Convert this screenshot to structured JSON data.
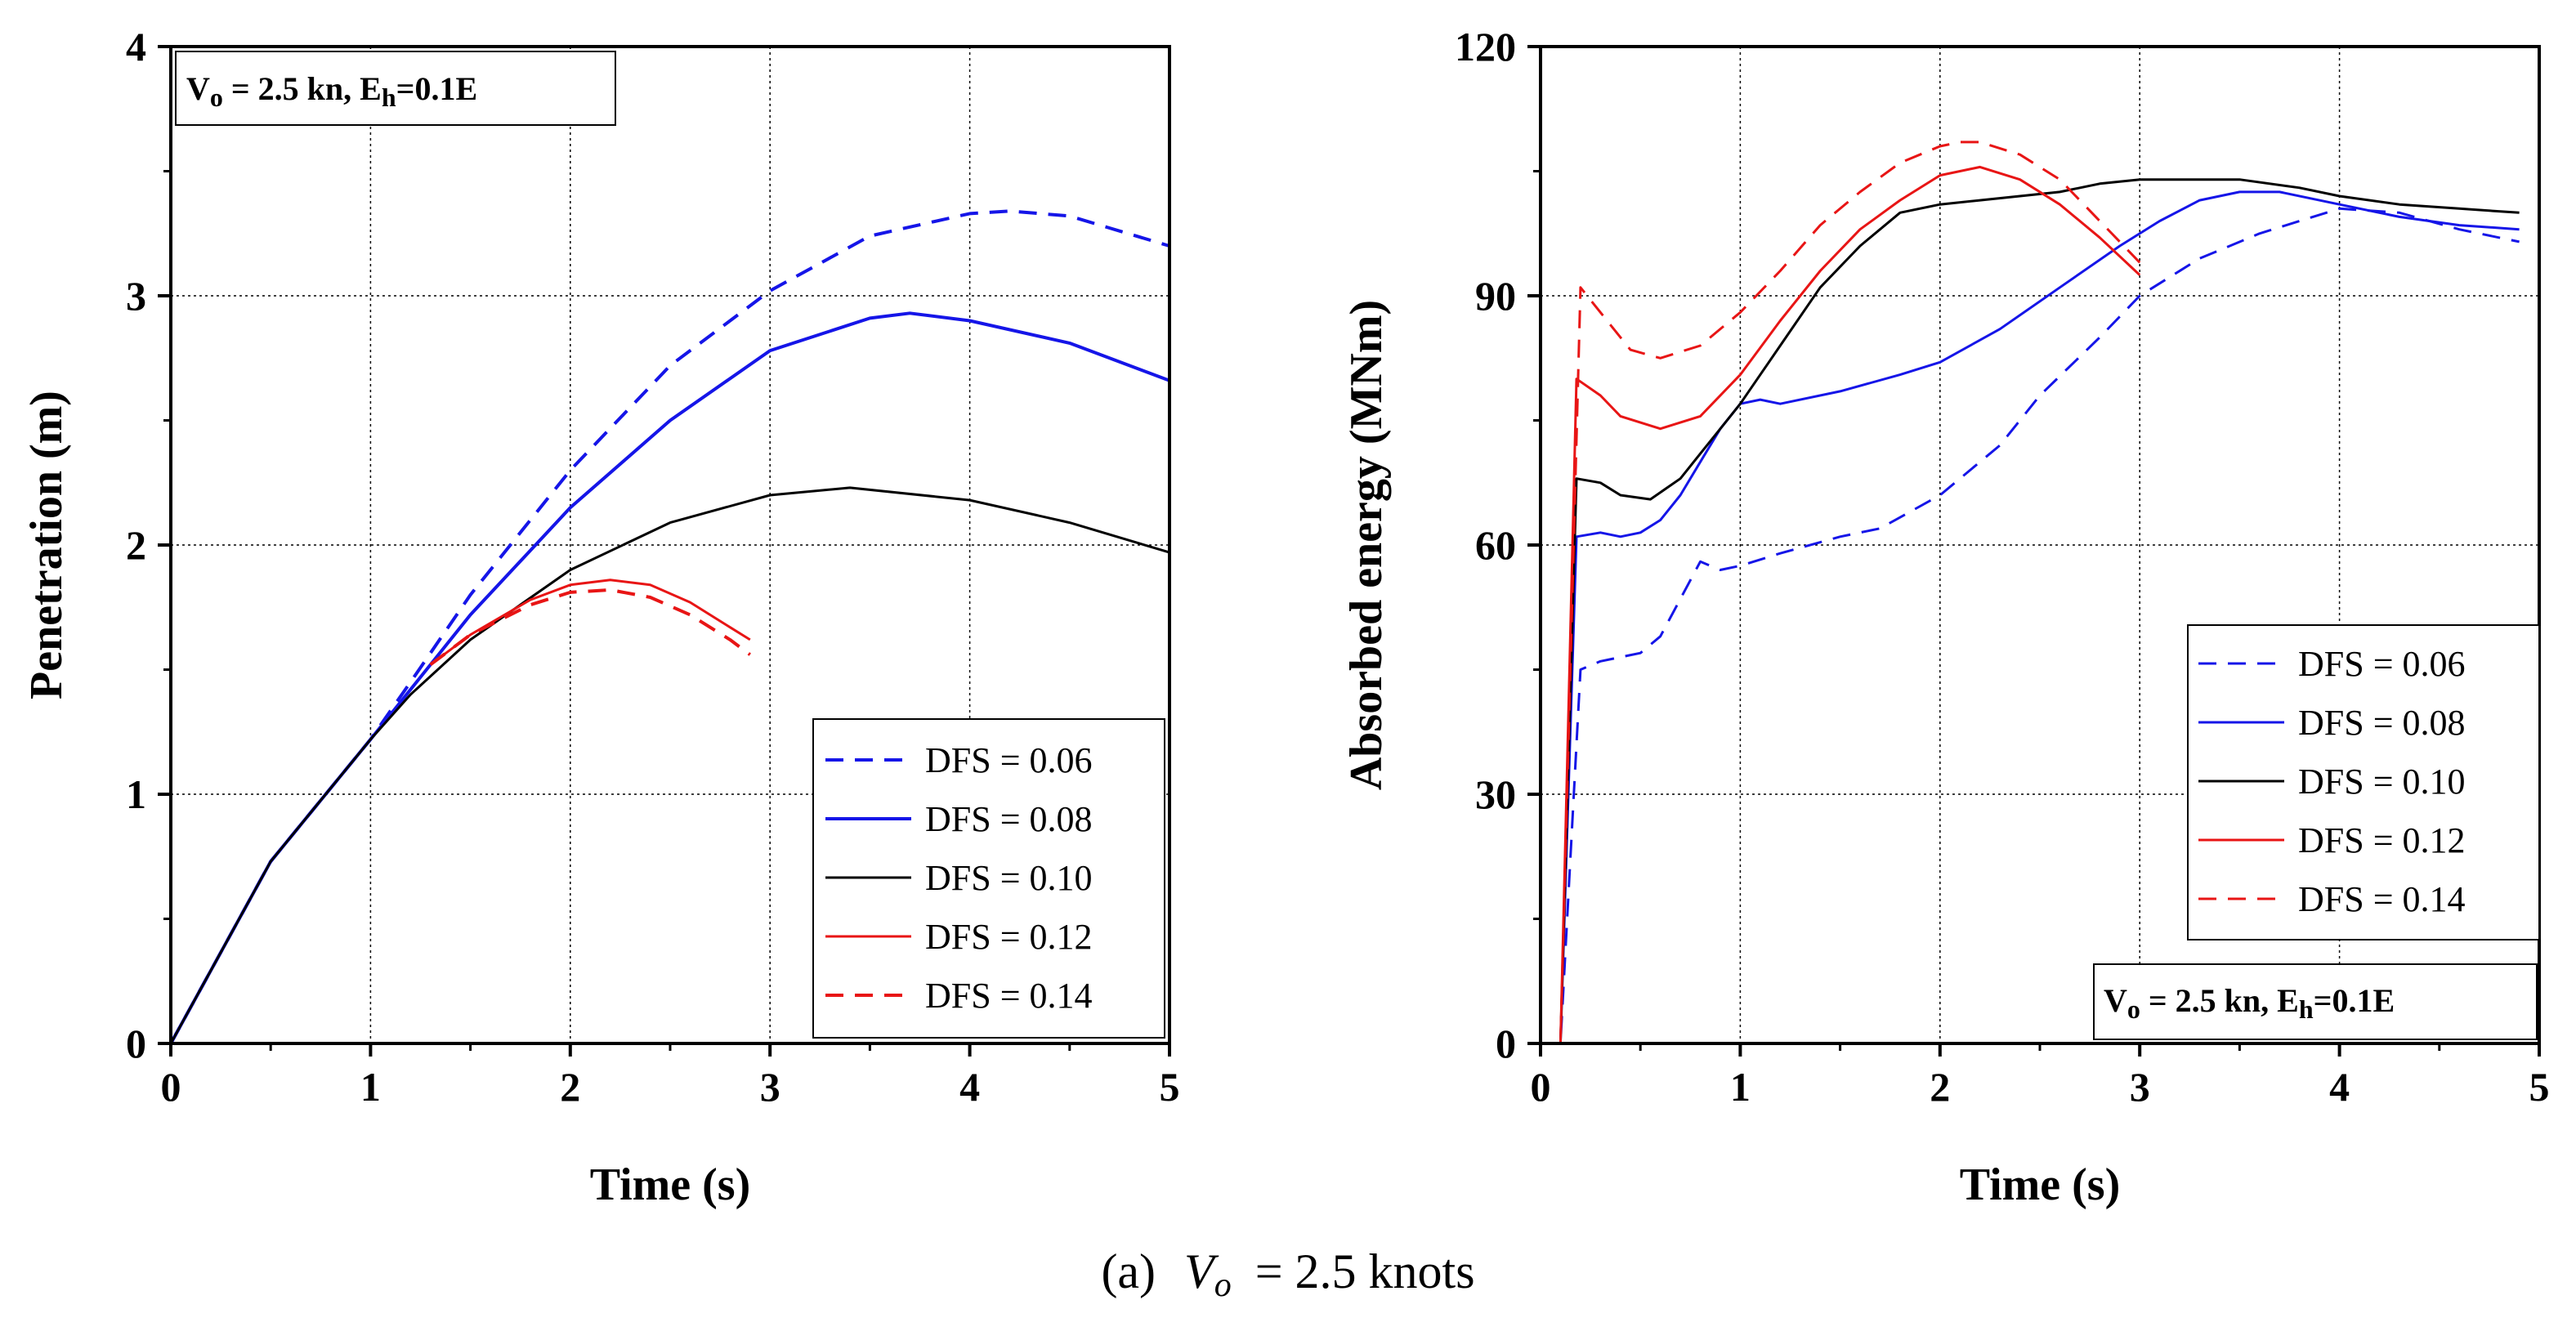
{
  "caption": {
    "label": "(a)",
    "symbol": "V",
    "subscript": "o",
    "rest": "= 2.5 knots"
  },
  "colors": {
    "blue": "#1515e8",
    "black": "#000000",
    "red": "#e81515",
    "grid": "#000000"
  },
  "chart_data": [
    {
      "type": "line",
      "xlabel": "Time (s)",
      "ylabel": "Penetration (m)",
      "xlim": [
        0,
        5
      ],
      "ylim": [
        0,
        4
      ],
      "xticks": [
        "0",
        "1",
        "2",
        "3",
        "4",
        "5"
      ],
      "yticks": [
        "0",
        "1",
        "2",
        "3",
        "4"
      ],
      "grid": true,
      "legend_position": "bottom-right",
      "annotation": {
        "main": "V",
        "sub1": "o",
        "mid": " = 2.5 kn, E",
        "sub2": "h",
        "tail": "=0.1E",
        "position": "top-left"
      },
      "series": [
        {
          "name": "DFS = 0.06",
          "color": "#1515e8",
          "dash": true,
          "width": 4,
          "x": [
            0,
            0.5,
            1.0,
            1.2,
            1.5,
            2.0,
            2.5,
            3.0,
            3.5,
            4.0,
            4.2,
            4.5,
            5.0
          ],
          "y": [
            0,
            0.73,
            1.22,
            1.45,
            1.8,
            2.3,
            2.72,
            3.02,
            3.24,
            3.33,
            3.34,
            3.32,
            3.2
          ]
        },
        {
          "name": "DFS = 0.08",
          "color": "#1515e8",
          "dash": false,
          "width": 4,
          "x": [
            0,
            0.5,
            1.0,
            1.2,
            1.5,
            2.0,
            2.5,
            3.0,
            3.5,
            3.7,
            4.0,
            4.5,
            5.0
          ],
          "y": [
            0,
            0.73,
            1.22,
            1.42,
            1.72,
            2.15,
            2.5,
            2.78,
            2.91,
            2.93,
            2.9,
            2.81,
            2.66
          ]
        },
        {
          "name": "DFS = 0.10",
          "color": "#000000",
          "dash": false,
          "width": 3,
          "x": [
            0,
            0.5,
            1.0,
            1.2,
            1.5,
            2.0,
            2.5,
            3.0,
            3.4,
            4.0,
            4.5,
            5.0
          ],
          "y": [
            0,
            0.73,
            1.22,
            1.4,
            1.62,
            1.9,
            2.09,
            2.2,
            2.23,
            2.18,
            2.09,
            1.97
          ]
        },
        {
          "name": "DFS = 0.12",
          "color": "#e81515",
          "dash": false,
          "width": 3,
          "x": [
            1.3,
            1.5,
            1.8,
            2.0,
            2.2,
            2.4,
            2.6,
            2.8,
            2.9
          ],
          "y": [
            1.52,
            1.64,
            1.78,
            1.84,
            1.86,
            1.84,
            1.77,
            1.67,
            1.62
          ]
        },
        {
          "name": "DFS = 0.14",
          "color": "#e81515",
          "dash": true,
          "width": 4,
          "x": [
            1.3,
            1.5,
            1.8,
            2.0,
            2.2,
            2.4,
            2.6,
            2.8,
            2.9
          ],
          "y": [
            1.52,
            1.64,
            1.76,
            1.81,
            1.82,
            1.79,
            1.72,
            1.62,
            1.56
          ]
        }
      ]
    },
    {
      "type": "line",
      "xlabel": "Time (s)",
      "ylabel": "Absorbed energy (MNm)",
      "xlim": [
        0,
        5
      ],
      "ylim": [
        0,
        120
      ],
      "xticks": [
        "0",
        "1",
        "2",
        "3",
        "4",
        "5"
      ],
      "yticks": [
        "0",
        "30",
        "60",
        "90",
        "120"
      ],
      "grid": true,
      "legend_position": "right-middle",
      "annotation": {
        "main": "V",
        "sub1": "o",
        "mid": " = 2.5 kn, E",
        "sub2": "h",
        "tail": "=0.1E",
        "position": "bottom-right"
      },
      "series": [
        {
          "name": "DFS = 0.06",
          "color": "#1515e8",
          "dash": true,
          "width": 3,
          "x": [
            0,
            0.1,
            0.2,
            0.3,
            0.5,
            0.6,
            0.8,
            0.9,
            1.0,
            1.2,
            1.5,
            1.7,
            2.0,
            2.3,
            2.5,
            2.8,
            3.0,
            3.3,
            3.6,
            3.8,
            4.0,
            4.3,
            4.6,
            4.9
          ],
          "y": [
            0,
            0,
            45,
            46,
            47,
            49,
            58,
            57,
            57.5,
            59,
            61,
            62,
            66,
            72,
            78,
            85,
            90,
            94.5,
            97.5,
            99,
            100.5,
            100,
            98,
            96.5
          ]
        },
        {
          "name": "DFS = 0.08",
          "color": "#1515e8",
          "dash": false,
          "width": 3,
          "x": [
            0,
            0.1,
            0.18,
            0.3,
            0.4,
            0.5,
            0.6,
            0.7,
            0.8,
            0.9,
            1.0,
            1.1,
            1.2,
            1.5,
            1.8,
            2.0,
            2.3,
            2.6,
            2.9,
            3.1,
            3.3,
            3.5,
            3.7,
            4.0,
            4.3,
            4.6,
            4.9
          ],
          "y": [
            0,
            0,
            61,
            61.5,
            61,
            61.5,
            63,
            66,
            70,
            74,
            77,
            77.5,
            77,
            78.5,
            80.5,
            82,
            86,
            91,
            96,
            99,
            101.5,
            102.5,
            102.5,
            101,
            99.5,
            98.5,
            98
          ]
        },
        {
          "name": "DFS = 0.10",
          "color": "#000000",
          "dash": false,
          "width": 3,
          "x": [
            0,
            0.1,
            0.18,
            0.3,
            0.4,
            0.55,
            0.7,
            0.8,
            0.9,
            1.0,
            1.2,
            1.4,
            1.6,
            1.8,
            2.0,
            2.2,
            2.4,
            2.6,
            2.8,
            3.0,
            3.2,
            3.5,
            3.8,
            4.0,
            4.3,
            4.6,
            4.9
          ],
          "y": [
            0,
            0,
            68,
            67.5,
            66,
            65.5,
            68,
            71,
            74,
            77,
            84,
            91,
            96,
            100,
            101,
            101.5,
            102,
            102.5,
            103.5,
            104,
            104,
            104,
            103,
            102,
            101,
            100.5,
            100
          ]
        },
        {
          "name": "DFS = 0.12",
          "color": "#e81515",
          "dash": false,
          "width": 3,
          "x": [
            0,
            0.1,
            0.18,
            0.3,
            0.4,
            0.6,
            0.8,
            1.0,
            1.2,
            1.4,
            1.6,
            1.8,
            2.0,
            2.2,
            2.4,
            2.6,
            2.8,
            3.0
          ],
          "y": [
            0,
            0,
            80,
            78,
            75.5,
            74,
            75.5,
            80.5,
            87,
            93,
            98,
            101.5,
            104.5,
            105.5,
            104,
            101,
            97,
            92.5
          ]
        },
        {
          "name": "DFS = 0.14",
          "color": "#e81515",
          "dash": true,
          "width": 3,
          "x": [
            0,
            0.1,
            0.2,
            0.3,
            0.45,
            0.6,
            0.8,
            1.0,
            1.2,
            1.4,
            1.6,
            1.8,
            2.0,
            2.1,
            2.2,
            2.4,
            2.6,
            2.8,
            3.0
          ],
          "y": [
            0,
            0,
            91,
            88,
            83.5,
            82.5,
            84,
            88,
            93,
            98.5,
            102.5,
            106,
            108,
            108.5,
            108.5,
            107,
            104,
            99,
            94
          ]
        }
      ]
    }
  ]
}
